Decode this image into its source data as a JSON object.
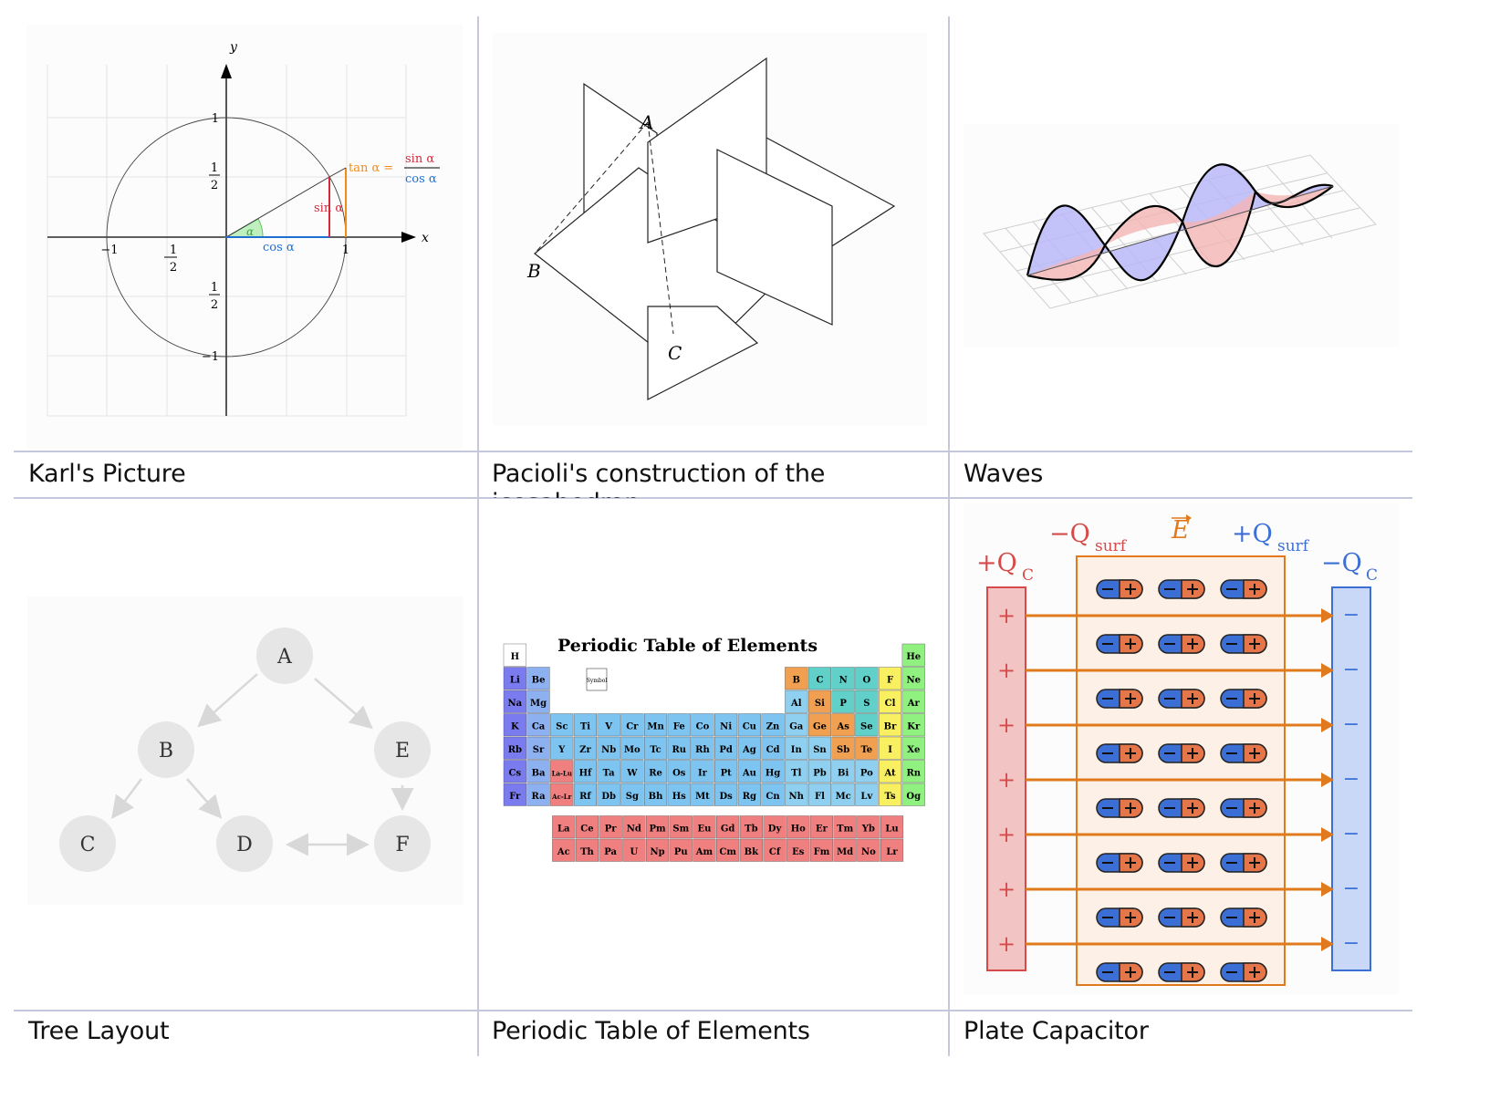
{
  "gallery": {
    "items": [
      {
        "caption": "Karl's Picture"
      },
      {
        "caption": "Pacioli's construction of the icosahedron"
      },
      {
        "caption": "Waves"
      },
      {
        "caption": "Tree Layout"
      },
      {
        "caption": "Periodic Table of Elements"
      },
      {
        "caption": "Plate Capacitor"
      }
    ]
  },
  "karl": {
    "x_axis": "x",
    "y_axis": "y",
    "ticks": [
      "1",
      "−1",
      "1",
      "−1"
    ],
    "half": "1",
    "half_den": "2",
    "alpha": "α",
    "sin_label": "sin α",
    "cos_label": "cos α",
    "tan_label": "tan α =",
    "frac_num": "sin α",
    "frac_den": "cos α",
    "colors": {
      "sin": "#d6283c",
      "cos": "#1f6fd1",
      "tan": "#f08c1a",
      "angle": "#5cc85c"
    }
  },
  "pacioli": {
    "points": [
      "A",
      "B",
      "C"
    ]
  },
  "tree": {
    "nodes": [
      "A",
      "B",
      "E",
      "C",
      "D",
      "F"
    ]
  },
  "periodic": {
    "title": "Periodic Table of Elements",
    "rows": [
      [
        "H",
        "",
        "",
        "",
        "",
        "",
        "",
        "",
        "",
        "",
        "",
        "",
        "",
        "",
        "",
        "",
        "",
        "He"
      ],
      [
        "Li",
        "Be",
        "",
        "",
        "",
        "",
        "",
        "",
        "",
        "",
        "",
        "",
        "B",
        "C",
        "N",
        "O",
        "F",
        "Ne"
      ],
      [
        "Na",
        "Mg",
        "",
        "",
        "",
        "",
        "",
        "",
        "",
        "",
        "",
        "",
        "Al",
        "Si",
        "P",
        "S",
        "Cl",
        "Ar"
      ],
      [
        "K",
        "Ca",
        "Sc",
        "Ti",
        "V",
        "Cr",
        "Mn",
        "Fe",
        "Co",
        "Ni",
        "Cu",
        "Zn",
        "Ga",
        "Ge",
        "As",
        "Se",
        "Br",
        "Kr"
      ],
      [
        "Rb",
        "Sr",
        "Y",
        "Zr",
        "Nb",
        "Mo",
        "Tc",
        "Ru",
        "Rh",
        "Pd",
        "Ag",
        "Cd",
        "In",
        "Sn",
        "Sb",
        "Te",
        "I",
        "Xe"
      ],
      [
        "Cs",
        "Ba",
        "La-Lu",
        "Hf",
        "Ta",
        "W",
        "Re",
        "Os",
        "Ir",
        "Pt",
        "Au",
        "Hg",
        "Tl",
        "Pb",
        "Bi",
        "Po",
        "At",
        "Rn"
      ],
      [
        "Fr",
        "Ra",
        "Ac-Lr",
        "Rf",
        "Db",
        "Sg",
        "Bh",
        "Hs",
        "Mt",
        "Ds",
        "Rg",
        "Cn",
        "Nh",
        "Fl",
        "Mc",
        "Lv",
        "Ts",
        "Og"
      ]
    ],
    "lanthanides": [
      "La",
      "Ce",
      "Pr",
      "Nd",
      "Pm",
      "Sm",
      "Eu",
      "Gd",
      "Tb",
      "Dy",
      "Ho",
      "Er",
      "Tm",
      "Yb",
      "Lu"
    ],
    "actinides": [
      "Ac",
      "Th",
      "Pa",
      "U",
      "Np",
      "Pu",
      "Am",
      "Cm",
      "Bk",
      "Cf",
      "Es",
      "Fm",
      "Md",
      "No",
      "Lr"
    ],
    "key_symbol": "Symbol",
    "colors": {
      "alkali": "#7b7bf0",
      "alkaline": "#8db0f0",
      "transition": "#7ec4f0",
      "post": "#8fd0f0",
      "metalloid": "#f0a050",
      "nonmetal": "#60d0c8",
      "halogen": "#f8f060",
      "noble": "#90f080",
      "lanthanide": "#f08080"
    }
  },
  "capacitor": {
    "left_charge": "+Q",
    "left_sub": "C",
    "right_charge": "−Q",
    "right_sub": "C",
    "surf_neg": "−Q",
    "surf_pos": "+Q",
    "surf_sub": "surf",
    "field": "E",
    "plus": "+",
    "minus": "−",
    "colors": {
      "left": "#d64a4a",
      "right": "#3c6fd6",
      "field": "#e07a1c"
    }
  }
}
